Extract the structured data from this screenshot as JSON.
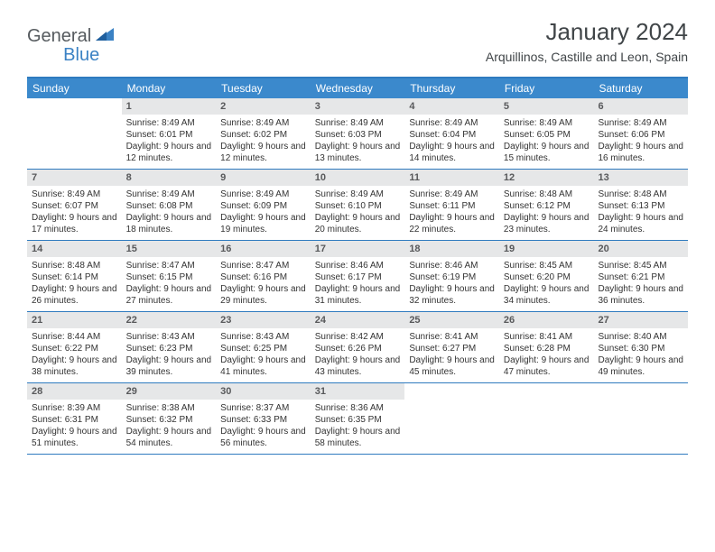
{
  "colors": {
    "header_bg": "#3b89cc",
    "header_text": "#ffffff",
    "daynum_bg": "#e6e7e8",
    "daynum_text": "#58595b",
    "border": "#2f7bbf",
    "body_text": "#333333",
    "logo_gray": "#555a5e",
    "logo_blue": "#3b82c4",
    "title_text": "#404548"
  },
  "logo": {
    "part1": "General",
    "part2": "Blue"
  },
  "title": "January 2024",
  "location": "Arquillinos, Castille and Leon, Spain",
  "weekdays": [
    "Sunday",
    "Monday",
    "Tuesday",
    "Wednesday",
    "Thursday",
    "Friday",
    "Saturday"
  ],
  "start_offset": 1,
  "days": [
    {
      "n": 1,
      "sunrise": "8:49 AM",
      "sunset": "6:01 PM",
      "dl": "9 hours and 12 minutes."
    },
    {
      "n": 2,
      "sunrise": "8:49 AM",
      "sunset": "6:02 PM",
      "dl": "9 hours and 12 minutes."
    },
    {
      "n": 3,
      "sunrise": "8:49 AM",
      "sunset": "6:03 PM",
      "dl": "9 hours and 13 minutes."
    },
    {
      "n": 4,
      "sunrise": "8:49 AM",
      "sunset": "6:04 PM",
      "dl": "9 hours and 14 minutes."
    },
    {
      "n": 5,
      "sunrise": "8:49 AM",
      "sunset": "6:05 PM",
      "dl": "9 hours and 15 minutes."
    },
    {
      "n": 6,
      "sunrise": "8:49 AM",
      "sunset": "6:06 PM",
      "dl": "9 hours and 16 minutes."
    },
    {
      "n": 7,
      "sunrise": "8:49 AM",
      "sunset": "6:07 PM",
      "dl": "9 hours and 17 minutes."
    },
    {
      "n": 8,
      "sunrise": "8:49 AM",
      "sunset": "6:08 PM",
      "dl": "9 hours and 18 minutes."
    },
    {
      "n": 9,
      "sunrise": "8:49 AM",
      "sunset": "6:09 PM",
      "dl": "9 hours and 19 minutes."
    },
    {
      "n": 10,
      "sunrise": "8:49 AM",
      "sunset": "6:10 PM",
      "dl": "9 hours and 20 minutes."
    },
    {
      "n": 11,
      "sunrise": "8:49 AM",
      "sunset": "6:11 PM",
      "dl": "9 hours and 22 minutes."
    },
    {
      "n": 12,
      "sunrise": "8:48 AM",
      "sunset": "6:12 PM",
      "dl": "9 hours and 23 minutes."
    },
    {
      "n": 13,
      "sunrise": "8:48 AM",
      "sunset": "6:13 PM",
      "dl": "9 hours and 24 minutes."
    },
    {
      "n": 14,
      "sunrise": "8:48 AM",
      "sunset": "6:14 PM",
      "dl": "9 hours and 26 minutes."
    },
    {
      "n": 15,
      "sunrise": "8:47 AM",
      "sunset": "6:15 PM",
      "dl": "9 hours and 27 minutes."
    },
    {
      "n": 16,
      "sunrise": "8:47 AM",
      "sunset": "6:16 PM",
      "dl": "9 hours and 29 minutes."
    },
    {
      "n": 17,
      "sunrise": "8:46 AM",
      "sunset": "6:17 PM",
      "dl": "9 hours and 31 minutes."
    },
    {
      "n": 18,
      "sunrise": "8:46 AM",
      "sunset": "6:19 PM",
      "dl": "9 hours and 32 minutes."
    },
    {
      "n": 19,
      "sunrise": "8:45 AM",
      "sunset": "6:20 PM",
      "dl": "9 hours and 34 minutes."
    },
    {
      "n": 20,
      "sunrise": "8:45 AM",
      "sunset": "6:21 PM",
      "dl": "9 hours and 36 minutes."
    },
    {
      "n": 21,
      "sunrise": "8:44 AM",
      "sunset": "6:22 PM",
      "dl": "9 hours and 38 minutes."
    },
    {
      "n": 22,
      "sunrise": "8:43 AM",
      "sunset": "6:23 PM",
      "dl": "9 hours and 39 minutes."
    },
    {
      "n": 23,
      "sunrise": "8:43 AM",
      "sunset": "6:25 PM",
      "dl": "9 hours and 41 minutes."
    },
    {
      "n": 24,
      "sunrise": "8:42 AM",
      "sunset": "6:26 PM",
      "dl": "9 hours and 43 minutes."
    },
    {
      "n": 25,
      "sunrise": "8:41 AM",
      "sunset": "6:27 PM",
      "dl": "9 hours and 45 minutes."
    },
    {
      "n": 26,
      "sunrise": "8:41 AM",
      "sunset": "6:28 PM",
      "dl": "9 hours and 47 minutes."
    },
    {
      "n": 27,
      "sunrise": "8:40 AM",
      "sunset": "6:30 PM",
      "dl": "9 hours and 49 minutes."
    },
    {
      "n": 28,
      "sunrise": "8:39 AM",
      "sunset": "6:31 PM",
      "dl": "9 hours and 51 minutes."
    },
    {
      "n": 29,
      "sunrise": "8:38 AM",
      "sunset": "6:32 PM",
      "dl": "9 hours and 54 minutes."
    },
    {
      "n": 30,
      "sunrise": "8:37 AM",
      "sunset": "6:33 PM",
      "dl": "9 hours and 56 minutes."
    },
    {
      "n": 31,
      "sunrise": "8:36 AM",
      "sunset": "6:35 PM",
      "dl": "9 hours and 58 minutes."
    }
  ],
  "labels": {
    "sunrise": "Sunrise:",
    "sunset": "Sunset:",
    "daylight": "Daylight:"
  }
}
